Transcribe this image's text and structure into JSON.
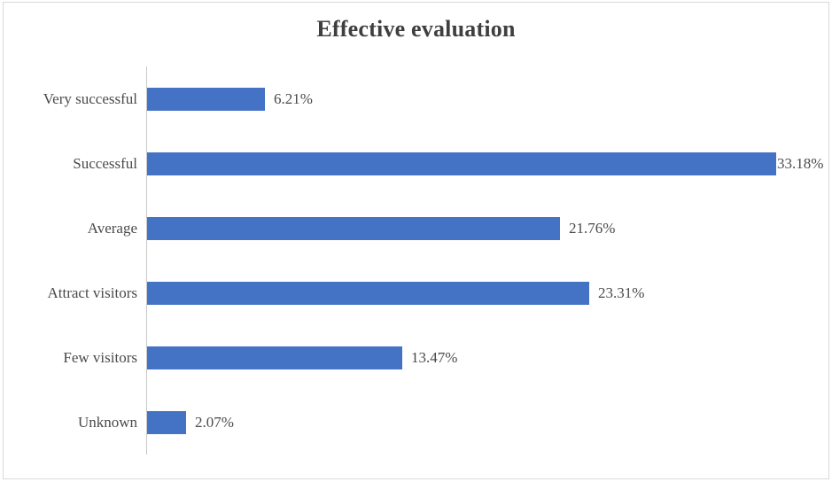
{
  "chart_data": {
    "type": "bar",
    "orientation": "horizontal",
    "title": "Effective evaluation",
    "categories": [
      "Very successful",
      "Successful",
      "Average",
      "Attract visitors",
      "Few visitors",
      "Unknown"
    ],
    "values": [
      6.21,
      33.18,
      21.76,
      23.31,
      13.47,
      2.07
    ],
    "data_labels": [
      "6.21%",
      "33.18%",
      "21.76%",
      "23.31%",
      "13.47%",
      "2.07%"
    ],
    "xlabel": "",
    "ylabel": "",
    "grid": false,
    "legend": false,
    "bar_color": "#4472c4",
    "axis_line_color": "#c8c8c8",
    "title_color": "#3f3f3f",
    "label_color": "#4a4a4a"
  }
}
